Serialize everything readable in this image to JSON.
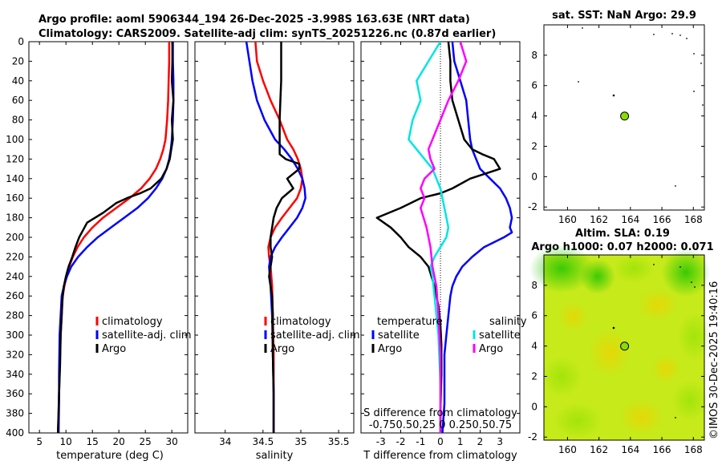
{
  "title": {
    "line1": "Argo profile: aoml 5906344_194 26-Dec-2025 -3.998S 163.63E (NRT data)",
    "line2": "Climatology: CARS2009. Satellite-adj clim: synTS_20251226.nc (0.87d earlier)"
  },
  "credit": "©IMOS 30-Dec-2025 19:40:16",
  "colors": {
    "climatology": "#ff0000",
    "satellite": "#0000ff",
    "argo": "#000000",
    "sat_diff_s": "#00e5e5",
    "sal_diff": "#ff00ff",
    "marker": "#88dd00"
  },
  "chart_data": [
    {
      "id": "temperature",
      "type": "line",
      "xlabel": "temperature (deg C)",
      "xlim": [
        3,
        33
      ],
      "xticks": [
        5,
        10,
        15,
        20,
        25,
        30
      ],
      "ylim": [
        400,
        0
      ],
      "yticks": [
        0,
        20,
        40,
        60,
        80,
        100,
        120,
        140,
        160,
        180,
        200,
        220,
        240,
        260,
        280,
        300,
        320,
        340,
        360,
        380,
        400
      ],
      "legend": [
        "climatology",
        "satellite-adj. clim",
        "Argo"
      ],
      "series": [
        {
          "name": "climatology",
          "color": "#ff0000",
          "x": [
            29.5,
            29.5,
            29.4,
            29.3,
            29.1,
            28.8,
            28.4,
            27.8,
            27.0,
            25.8,
            24.2,
            22.0,
            19.5,
            17.0,
            15.0,
            13.4,
            12.2,
            11.3,
            10.6,
            10.1,
            9.7,
            9.4,
            9.2,
            9.0,
            8.9,
            8.8,
            8.7,
            8.6,
            8.6
          ],
          "y": [
            0,
            20,
            40,
            60,
            80,
            100,
            110,
            120,
            130,
            140,
            150,
            160,
            170,
            180,
            190,
            200,
            210,
            220,
            230,
            240,
            250,
            260,
            280,
            300,
            320,
            340,
            360,
            380,
            400
          ]
        },
        {
          "name": "satellite-adj. clim",
          "color": "#0000ff",
          "x": [
            30.2,
            30.2,
            30.3,
            30.3,
            30.2,
            30.0,
            29.8,
            29.5,
            29.0,
            28.2,
            27.0,
            25.5,
            23.5,
            21.0,
            18.5,
            16.0,
            14.0,
            12.3,
            11.0,
            10.2,
            9.6,
            9.2,
            9.0,
            8.8,
            8.7,
            8.7,
            8.6
          ],
          "y": [
            0,
            20,
            40,
            60,
            80,
            100,
            110,
            120,
            130,
            140,
            150,
            160,
            170,
            180,
            190,
            200,
            210,
            220,
            230,
            240,
            250,
            260,
            280,
            300,
            340,
            370,
            400
          ]
        },
        {
          "name": "Argo",
          "color": "#000000",
          "x": [
            30.1,
            30.1,
            30.0,
            30.3,
            30.0,
            30.2,
            29.9,
            29.6,
            29.0,
            28.0,
            26.0,
            24.0,
            21.5,
            19.5,
            17.0,
            14.0,
            12.5,
            11.8,
            11.2,
            10.5,
            10.0,
            9.6,
            9.3,
            9.2,
            9.0,
            8.9,
            8.7,
            8.6,
            8.5,
            8.5
          ],
          "y": [
            0,
            20,
            40,
            60,
            80,
            100,
            110,
            120,
            130,
            140,
            150,
            155,
            160,
            165,
            175,
            185,
            200,
            210,
            220,
            230,
            240,
            250,
            265,
            280,
            300,
            330,
            360,
            380,
            395,
            400
          ]
        }
      ]
    },
    {
      "id": "salinity",
      "type": "line",
      "xlabel": "salinity",
      "xlim": [
        33.6,
        35.7
      ],
      "xticks": [
        34,
        34.5,
        35,
        35.5
      ],
      "ylim": [
        400,
        0
      ],
      "legend": [
        "climatology",
        "satellite-adj. clim",
        "Argo"
      ],
      "series": [
        {
          "name": "climatology",
          "color": "#ff0000",
          "x": [
            34.4,
            34.42,
            34.5,
            34.6,
            34.72,
            34.82,
            34.9,
            34.96,
            35.0,
            35.02,
            35.0,
            34.95,
            34.85,
            34.75,
            34.66,
            34.6,
            34.57,
            34.58,
            34.6,
            34.62,
            34.63,
            34.64,
            34.64,
            34.64
          ],
          "y": [
            0,
            20,
            40,
            60,
            80,
            100,
            110,
            120,
            130,
            140,
            150,
            160,
            170,
            180,
            190,
            200,
            210,
            220,
            230,
            250,
            280,
            320,
            360,
            400
          ]
        },
        {
          "name": "satellite-adj. clim",
          "color": "#0000ff",
          "x": [
            34.28,
            34.32,
            34.36,
            34.42,
            34.52,
            34.66,
            34.78,
            34.88,
            34.96,
            35.02,
            35.05,
            35.06,
            35.02,
            34.95,
            34.85,
            34.75,
            34.66,
            34.6,
            34.58,
            34.6,
            34.62,
            34.63,
            34.64,
            34.64
          ],
          "y": [
            0,
            20,
            40,
            60,
            80,
            100,
            110,
            120,
            130,
            140,
            150,
            160,
            170,
            180,
            190,
            200,
            210,
            220,
            230,
            250,
            280,
            320,
            360,
            400
          ]
        },
        {
          "name": "Argo",
          "color": "#000000",
          "x": [
            34.74,
            34.74,
            34.74,
            34.73,
            34.72,
            34.72,
            34.72,
            34.72,
            34.8,
            34.98,
            34.98,
            34.82,
            34.9,
            34.75,
            34.68,
            34.64,
            34.62,
            34.6,
            34.6,
            34.62,
            34.6,
            34.58,
            34.6,
            34.62,
            34.63,
            34.63,
            34.64,
            34.64
          ],
          "y": [
            0,
            20,
            40,
            60,
            80,
            100,
            110,
            115,
            120,
            125,
            130,
            140,
            150,
            160,
            170,
            180,
            190,
            200,
            210,
            220,
            230,
            240,
            250,
            260,
            280,
            320,
            360,
            400
          ]
        }
      ]
    },
    {
      "id": "difference",
      "type": "line",
      "xlabel": "T difference from climatology",
      "top_label": "S difference from climatology",
      "s_ticks_text": "-0.750.50.25 0 0.250.50.75",
      "xlim": [
        -4,
        4
      ],
      "xticks": [
        -3,
        -2,
        -1,
        0,
        1,
        2,
        3
      ],
      "ylim": [
        400,
        0
      ],
      "legend_left_title": "temperature",
      "legend_right_title": "salinity",
      "legend_left": [
        "satellite",
        "Argo"
      ],
      "legend_right": [
        "satellite",
        "Argo"
      ],
      "series": [
        {
          "name": "T satellite",
          "color": "#0000ff",
          "x": [
            0.6,
            0.7,
            1.0,
            1.3,
            1.4,
            1.5,
            1.6,
            1.8,
            2.0,
            2.5,
            3.0,
            3.3,
            3.5,
            3.6,
            3.5,
            3.6,
            3.2,
            2.2,
            1.6,
            1.1,
            0.8,
            0.6,
            0.5,
            0.4,
            0.3,
            0.2,
            0.2,
            0.2,
            0.1
          ],
          "y": [
            0,
            20,
            40,
            60,
            80,
            100,
            110,
            120,
            130,
            140,
            150,
            160,
            170,
            180,
            190,
            195,
            200,
            210,
            220,
            230,
            240,
            250,
            260,
            280,
            300,
            320,
            340,
            370,
            400
          ]
        },
        {
          "name": "T Argo",
          "color": "#000000",
          "x": [
            0.4,
            0.5,
            0.5,
            0.6,
            0.9,
            1.2,
            1.6,
            2.1,
            2.7,
            3.0,
            1.5,
            0.6,
            0.0,
            -1.0,
            -2.0,
            -3.2,
            -2.5,
            -2.0,
            -1.6,
            -1.0,
            -0.6,
            -0.3,
            -0.1,
            0.0,
            0.05,
            0.05,
            0.0,
            0.0
          ],
          "y": [
            0,
            20,
            40,
            60,
            80,
            100,
            110,
            115,
            120,
            130,
            140,
            150,
            155,
            160,
            170,
            180,
            190,
            200,
            210,
            220,
            230,
            250,
            270,
            290,
            310,
            340,
            380,
            400
          ]
        },
        {
          "name": "S satellite",
          "color": "#00e5e5",
          "x": [
            0.0,
            -0.6,
            -1.2,
            -1.0,
            -1.4,
            -1.6,
            -1.2,
            -0.8,
            -0.4,
            -0.2,
            0.0,
            0.2,
            0.4,
            0.3,
            0.0,
            -0.3,
            -0.5,
            -0.4,
            -0.3,
            -0.1,
            0.0,
            0.0
          ],
          "y": [
            0,
            20,
            40,
            60,
            80,
            100,
            110,
            120,
            130,
            140,
            150,
            170,
            190,
            200,
            210,
            220,
            230,
            240,
            260,
            300,
            350,
            400
          ]
        },
        {
          "name": "S Argo",
          "color": "#ff00ff",
          "x": [
            1.0,
            1.3,
            0.9,
            0.4,
            0.0,
            -0.4,
            -0.6,
            -0.5,
            -0.3,
            -0.8,
            -1.0,
            -0.8,
            -1.0,
            -0.7,
            -0.5,
            -0.4,
            -0.2,
            -0.1,
            0.0,
            0.0
          ],
          "y": [
            0,
            20,
            40,
            60,
            80,
            100,
            110,
            120,
            130,
            140,
            150,
            160,
            170,
            190,
            210,
            230,
            250,
            280,
            320,
            400
          ]
        }
      ]
    },
    {
      "id": "sst_map",
      "type": "scatter",
      "title": "sat. SST: NaN Argo: 29.9",
      "xlim": [
        158.5,
        168.7
      ],
      "ylim": [
        -2.2,
        10
      ],
      "xticks": [
        160,
        162,
        164,
        166,
        168
      ],
      "yticks": [
        -2,
        0,
        2,
        4,
        6,
        8
      ],
      "argo_position": [
        163.63,
        3.99
      ]
    },
    {
      "id": "sla_map",
      "type": "heatmap",
      "title": "Altim. SLA: 0.19",
      "subtitle": "Argo h1000: 0.07 h2000: 0.071",
      "xlim": [
        158.5,
        168.7
      ],
      "ylim": [
        -2.2,
        10
      ],
      "xticks": [
        160,
        162,
        164,
        166,
        168
      ],
      "yticks": [
        -2,
        0,
        2,
        4,
        6,
        8
      ],
      "argo_position": [
        163.63,
        3.99
      ]
    }
  ]
}
